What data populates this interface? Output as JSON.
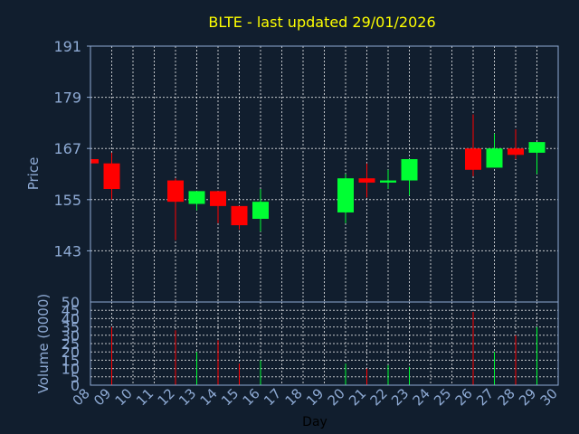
{
  "chart_data": [
    {
      "type": "candlestick",
      "title": "BLTE - last updated 29/01/2026",
      "ylabel": "Price",
      "ylim": [
        131,
        191
      ],
      "yticks": [
        191,
        179,
        167,
        155,
        143
      ],
      "grid": true,
      "colors": {
        "up": "#00ff33",
        "down": "#ff0000",
        "title": "#ffff00",
        "axis_text": "#8eaad4",
        "background": "#111e2e",
        "grid": "#ffffff"
      },
      "candles": [
        {
          "day": 8,
          "open": 164.5,
          "high": 164.5,
          "low": 163.5,
          "close": 163.5
        },
        {
          "day": 9,
          "open": 163.5,
          "high": 166.0,
          "low": 155.0,
          "close": 157.5
        },
        {
          "day": 12,
          "open": 159.5,
          "high": 160.0,
          "low": 145.5,
          "close": 154.5
        },
        {
          "day": 13,
          "open": 154.0,
          "high": 157.0,
          "low": 152.5,
          "close": 157.0
        },
        {
          "day": 14,
          "open": 157.0,
          "high": 157.0,
          "low": 149.5,
          "close": 153.5
        },
        {
          "day": 15,
          "open": 153.5,
          "high": 153.5,
          "low": 148.0,
          "close": 149.0
        },
        {
          "day": 16,
          "open": 150.5,
          "high": 157.5,
          "low": 147.5,
          "close": 154.5
        },
        {
          "day": 20,
          "open": 152.0,
          "high": 161.0,
          "low": 149.5,
          "close": 160.0
        },
        {
          "day": 21,
          "open": 160.0,
          "high": 163.5,
          "low": 155.5,
          "close": 159.0
        },
        {
          "day": 22,
          "open": 159.0,
          "high": 162.0,
          "low": 157.5,
          "close": 159.5
        },
        {
          "day": 23,
          "open": 159.5,
          "high": 164.5,
          "low": 156.0,
          "close": 164.5
        },
        {
          "day": 26,
          "open": 167.0,
          "high": 175.0,
          "low": 160.5,
          "close": 162.0
        },
        {
          "day": 27,
          "open": 162.5,
          "high": 170.5,
          "low": 162.5,
          "close": 167.0
        },
        {
          "day": 28,
          "open": 167.0,
          "high": 171.5,
          "low": 164.5,
          "close": 165.5
        },
        {
          "day": 29,
          "open": 166.0,
          "high": 168.5,
          "low": 161.0,
          "close": 168.5
        }
      ]
    },
    {
      "type": "bar",
      "xlabel": "Day",
      "ylabel": "Volume (0000)",
      "ylim": [
        0,
        50
      ],
      "yticks": [
        0,
        5,
        10,
        15,
        20,
        25,
        30,
        35,
        40,
        45,
        50
      ],
      "x_tick_labels": [
        "08",
        "09",
        "10",
        "11",
        "12",
        "13",
        "14",
        "15",
        "16",
        "17",
        "18",
        "19",
        "20",
        "21",
        "22",
        "23",
        "24",
        "25",
        "26",
        "27",
        "28",
        "29",
        "30"
      ],
      "xlim": [
        8,
        30
      ],
      "grid": true,
      "bars": [
        {
          "day": 8,
          "value": 0,
          "direction": "down"
        },
        {
          "day": 9,
          "value": 35,
          "direction": "down"
        },
        {
          "day": 12,
          "value": 33,
          "direction": "down"
        },
        {
          "day": 13,
          "value": 20,
          "direction": "up"
        },
        {
          "day": 14,
          "value": 27,
          "direction": "down"
        },
        {
          "day": 15,
          "value": 13,
          "direction": "down"
        },
        {
          "day": 16,
          "value": 15,
          "direction": "up"
        },
        {
          "day": 20,
          "value": 13,
          "direction": "up"
        },
        {
          "day": 21,
          "value": 10,
          "direction": "down"
        },
        {
          "day": 22,
          "value": 12,
          "direction": "up"
        },
        {
          "day": 23,
          "value": 11,
          "direction": "up"
        },
        {
          "day": 26,
          "value": 44,
          "direction": "down"
        },
        {
          "day": 27,
          "value": 20,
          "direction": "up"
        },
        {
          "day": 28,
          "value": 30,
          "direction": "down"
        },
        {
          "day": 29,
          "value": 35,
          "direction": "up"
        }
      ]
    }
  ]
}
